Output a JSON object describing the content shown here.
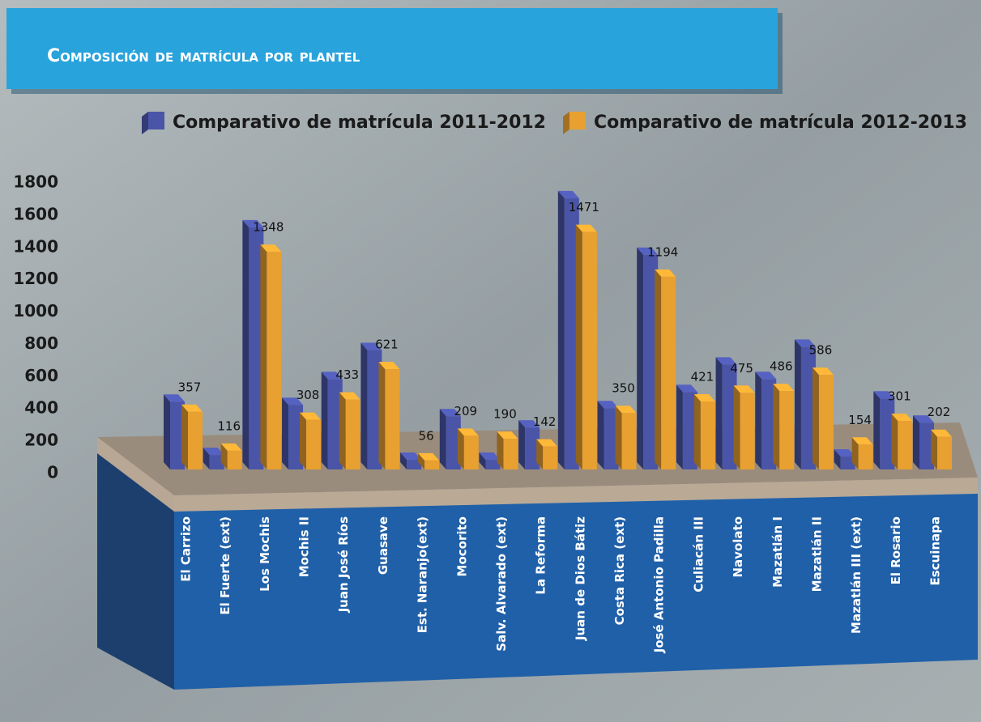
{
  "chart_data": {
    "type": "bar",
    "title": "Composición de matrícula por plantel",
    "categories": [
      "El Carrizo",
      "El Fuerte (ext)",
      "Los Mochis",
      "Mochis II",
      "Juan José Ríos",
      "Guasave",
      "Est. Naranjo(ext)",
      "Mocorito",
      "Salv. Alvarado (ext)",
      "La Reforma",
      "Juan de Dios Bátiz",
      "Costa Rica (ext)",
      "José Antonio Padilla",
      "Culiacán III",
      "Navolato",
      "Mazatlán I",
      "Mazatlán II",
      "Mazatlán III (ext)",
      "El Rosario",
      "Escuinapa"
    ],
    "series": [
      {
        "name": "Comparativo de matrícula 2011-2012",
        "color": "#4a55a8",
        "values": [
          420,
          90,
          1500,
          400,
          560,
          740,
          60,
          330,
          60,
          260,
          1680,
          380,
          1330,
          480,
          650,
          560,
          760,
          80,
          440,
          290
        ]
      },
      {
        "name": "Comparativo de matrícula 2012-2013",
        "color": "#e8a030",
        "values": [
          357,
          116,
          1348,
          308,
          433,
          621,
          56,
          209,
          190,
          142,
          1471,
          350,
          1194,
          421,
          475,
          486,
          586,
          154,
          301,
          202
        ]
      }
    ],
    "ylim": [
      0,
      1800
    ],
    "yticks": [
      0,
      200,
      400,
      600,
      800,
      1000,
      1200,
      1400,
      1600,
      1800
    ]
  }
}
